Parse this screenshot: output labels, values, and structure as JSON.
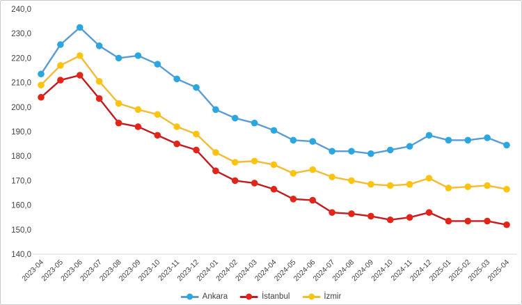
{
  "chart_data": {
    "type": "line",
    "title": "",
    "xlabel": "",
    "ylabel": "",
    "x": [
      "2023-04",
      "2023-05",
      "2023-06",
      "2023-07",
      "2023-08",
      "2023-09",
      "2023-10",
      "2023-11",
      "2023-12",
      "2024-01",
      "2024-02",
      "2024-03",
      "2024-04",
      "2024-05",
      "2024-06",
      "2024-07",
      "2024-08",
      "2024-09",
      "2024-10",
      "2024-11",
      "2024-12",
      "2025-01",
      "2025-02",
      "2025-03",
      "2025-04"
    ],
    "series": [
      {
        "name": "Ankara",
        "marker_color": "#2aa7e0",
        "line_color": "#5b9bd5",
        "values": [
          213.5,
          225.5,
          232.5,
          225.0,
          220.0,
          221.0,
          217.5,
          211.5,
          208.0,
          199.0,
          195.5,
          193.5,
          190.5,
          186.5,
          186.0,
          182.0,
          182.0,
          181.0,
          182.5,
          184.0,
          188.5,
          186.5,
          186.5,
          187.5,
          184.5
        ]
      },
      {
        "name": "İstanbul",
        "marker_color": "#e32419",
        "line_color": "#c41a1e",
        "values": [
          204.0,
          211.0,
          213.0,
          203.5,
          193.5,
          192.0,
          188.5,
          185.0,
          182.5,
          174.0,
          170.0,
          169.0,
          166.5,
          162.5,
          162.0,
          157.0,
          156.5,
          155.5,
          154.0,
          155.0,
          157.0,
          153.5,
          153.5,
          153.5,
          152.0
        ]
      },
      {
        "name": "İzmir",
        "marker_color": "#fdc40f",
        "line_color": "#f2bb33",
        "values": [
          209.0,
          217.0,
          221.0,
          210.5,
          201.5,
          199.0,
          197.0,
          192.0,
          189.0,
          181.5,
          177.5,
          178.0,
          176.5,
          173.0,
          174.5,
          171.5,
          170.0,
          168.5,
          168.0,
          168.5,
          171.0,
          167.0,
          167.5,
          168.0,
          166.5
        ]
      }
    ],
    "ylim": [
      140,
      240
    ],
    "ytick_step": 10,
    "ytick_labels": [
      "240,0",
      "230,0",
      "220,0",
      "210,0",
      "200,0",
      "190,0",
      "180,0",
      "170,0",
      "160,0",
      "150,0",
      "140,0"
    ],
    "grid": false,
    "legend_position": "bottom"
  },
  "style": {
    "axis_label_color": "#404040",
    "axis_line_color": "#d9d9d9",
    "frame_border_color": "#c9c9c9",
    "background_color": "#ffffff"
  }
}
